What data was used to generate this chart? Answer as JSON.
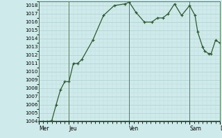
{
  "background_color": "#ceeaea",
  "grid_color_major": "#aac8c8",
  "grid_color_minor": "#c0dada",
  "line_color": "#2d5a2d",
  "marker_color": "#2d5a2d",
  "ylim": [
    1004,
    1018.5
  ],
  "yticks": [
    1004,
    1005,
    1006,
    1007,
    1008,
    1009,
    1010,
    1011,
    1012,
    1013,
    1014,
    1015,
    1016,
    1017,
    1018
  ],
  "x_day_labels": [
    "Mer",
    "Jeu",
    "Ven",
    "Sam",
    "D"
  ],
  "x_day_positions": [
    0,
    56,
    168,
    280,
    336
  ],
  "data_x": [
    0,
    8,
    16,
    24,
    32,
    40,
    48,
    56,
    64,
    72,
    80,
    100,
    120,
    140,
    160,
    168,
    180,
    196,
    210,
    220,
    230,
    240,
    252,
    265,
    280,
    290,
    295,
    304,
    308,
    315,
    320,
    328,
    336
  ],
  "data_y": [
    1004.0,
    1004.0,
    1004.0,
    1004.1,
    1006.0,
    1007.8,
    1008.8,
    1008.8,
    1011.0,
    1011.0,
    1011.5,
    1013.8,
    1016.8,
    1018.0,
    1018.2,
    1018.4,
    1017.2,
    1016.0,
    1016.0,
    1016.5,
    1016.5,
    1017.0,
    1018.2,
    1016.8,
    1018.0,
    1016.8,
    1014.8,
    1013.0,
    1012.5,
    1012.2,
    1012.2,
    1013.8,
    1013.5
  ],
  "spine_color": "#3a6a3a",
  "bottom_spine_color": "#1a3a1a"
}
